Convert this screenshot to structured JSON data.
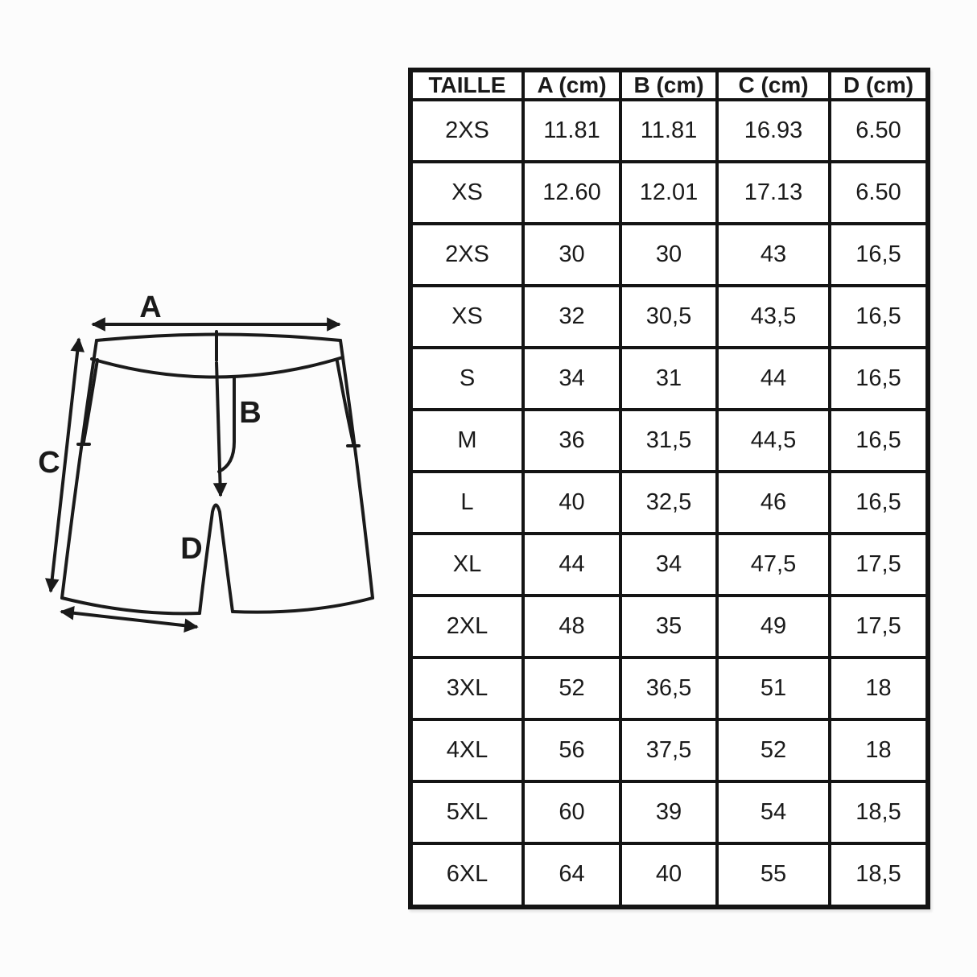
{
  "page": {
    "background_color": "#fcfcfc",
    "line_color": "#1a1a1a",
    "table_border_color": "#141414"
  },
  "diagram": {
    "description": "shorts-schematic-with-dimension-arrows",
    "labels": {
      "a": "A",
      "b": "B",
      "c": "C",
      "d": "D"
    }
  },
  "table": {
    "headers": [
      "TAILLE",
      "A (cm)",
      "B (cm)",
      "C (cm)",
      "D (cm)"
    ],
    "rows": [
      [
        "2XS",
        "11.81",
        "11.81",
        "16.93",
        "6.50"
      ],
      [
        "XS",
        "12.60",
        "12.01",
        "17.13",
        "6.50"
      ],
      [
        "2XS",
        "30",
        "30",
        "43",
        "16,5"
      ],
      [
        "XS",
        "32",
        "30,5",
        "43,5",
        "16,5"
      ],
      [
        "S",
        "34",
        "31",
        "44",
        "16,5"
      ],
      [
        "M",
        "36",
        "31,5",
        "44,5",
        "16,5"
      ],
      [
        "L",
        "40",
        "32,5",
        "46",
        "16,5"
      ],
      [
        "XL",
        "44",
        "34",
        "47,5",
        "17,5"
      ],
      [
        "2XL",
        "48",
        "35",
        "49",
        "17,5"
      ],
      [
        "3XL",
        "52",
        "36,5",
        "51",
        "18"
      ],
      [
        "4XL",
        "56",
        "37,5",
        "52",
        "18"
      ],
      [
        "5XL",
        "60",
        "39",
        "54",
        "18,5"
      ],
      [
        "6XL",
        "64",
        "40",
        "55",
        "18,5"
      ]
    ]
  },
  "chart_data": {
    "type": "table",
    "columns": [
      "TAILLE",
      "A (cm)",
      "B (cm)",
      "C (cm)",
      "D (cm)"
    ],
    "rows": [
      [
        "2XS",
        "11.81",
        "11.81",
        "16.93",
        "6.50"
      ],
      [
        "XS",
        "12.60",
        "12.01",
        "17.13",
        "6.50"
      ],
      [
        "2XS",
        "30",
        "30",
        "43",
        "16,5"
      ],
      [
        "XS",
        "32",
        "30,5",
        "43,5",
        "16,5"
      ],
      [
        "S",
        "34",
        "31",
        "44",
        "16,5"
      ],
      [
        "M",
        "36",
        "31,5",
        "44,5",
        "16,5"
      ],
      [
        "L",
        "40",
        "32,5",
        "46",
        "16,5"
      ],
      [
        "XL",
        "44",
        "34",
        "47,5",
        "17,5"
      ],
      [
        "2XL",
        "48",
        "35",
        "49",
        "17,5"
      ],
      [
        "3XL",
        "52",
        "36,5",
        "51",
        "18"
      ],
      [
        "4XL",
        "56",
        "37,5",
        "52",
        "18"
      ],
      [
        "5XL",
        "60",
        "39",
        "54",
        "18,5"
      ],
      [
        "6XL",
        "64",
        "40",
        "55",
        "18,5"
      ]
    ]
  }
}
